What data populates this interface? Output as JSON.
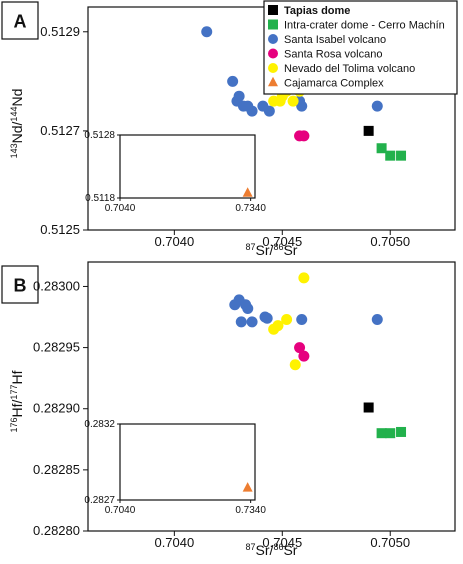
{
  "chart_data": [
    {
      "type": "scatter",
      "panel": "A",
      "xlabel": {
        "sup": "87",
        "base": "Sr/",
        "sup2": "86",
        "base2": "Sr"
      },
      "ylabel": {
        "sup": "143",
        "base": "Nd/",
        "sup2": "144",
        "base2": "Nd"
      },
      "xlim": [
        0.7036,
        0.7053
      ],
      "ylim": [
        0.5125,
        0.51295
      ],
      "xticks": [
        "0.7040",
        "0.7045",
        "0.7050"
      ],
      "xtick_values": [
        0.704,
        0.7045,
        0.705
      ],
      "yticks": [
        "0.5125",
        "0.5127",
        "0.5129"
      ],
      "ytick_values": [
        0.5125,
        0.5127,
        0.5129
      ],
      "series": [
        {
          "name": "Tapias dome",
          "color": "#000000",
          "marker": "square",
          "points": [
            [
              0.7049,
              0.5127
            ]
          ]
        },
        {
          "name": "Intra-crater dome - Cerro Machín",
          "color": "#22b14c",
          "marker": "square",
          "points": [
            [
              0.70496,
              0.512665
            ],
            [
              0.705,
              0.51265
            ],
            [
              0.70505,
              0.51265
            ]
          ]
        },
        {
          "name": "Santa Isabel volcano",
          "color": "#4472c4",
          "marker": "circle",
          "points": [
            [
              0.70415,
              0.5129
            ],
            [
              0.70427,
              0.5128
            ],
            [
              0.70429,
              0.51276
            ],
            [
              0.7043,
              0.51277
            ],
            [
              0.70432,
              0.51275
            ],
            [
              0.70434,
              0.51275
            ],
            [
              0.70436,
              0.51274
            ],
            [
              0.70441,
              0.51275
            ],
            [
              0.70444,
              0.51274
            ],
            [
              0.70458,
              0.51276
            ],
            [
              0.70459,
              0.51275
            ],
            [
              0.70494,
              0.51275
            ]
          ]
        },
        {
          "name": "Santa Rosa volcano",
          "color": "#e6007e",
          "marker": "circle",
          "points": [
            [
              0.70458,
              0.51269
            ],
            [
              0.7046,
              0.51269
            ]
          ]
        },
        {
          "name": "Nevado del Tolima volcano",
          "color": "#fff200",
          "marker": "circle",
          "points": [
            [
              0.70446,
              0.51276
            ],
            [
              0.70449,
              0.51276
            ],
            [
              0.7045,
              0.51277
            ],
            [
              0.70452,
              0.51278
            ],
            [
              0.70455,
              0.51279
            ],
            [
              0.70455,
              0.51276
            ],
            [
              0.70458,
              0.51278
            ],
            [
              0.70459,
              0.5128
            ]
          ]
        }
      ],
      "inset": {
        "xlim": [
          0.704,
          0.735
        ],
        "ylim": [
          0.5118,
          0.5128
        ],
        "xticks": [
          "0.7040",
          "0.7340"
        ],
        "xtick_values": [
          0.704,
          0.734
        ],
        "yticks": [
          "0.5118",
          "0.5128"
        ],
        "ytick_values": [
          0.5118,
          0.5128
        ],
        "series": [
          {
            "name": "Cajamarca Complex",
            "color": "#ed7d31",
            "marker": "triangle",
            "points": [
              [
                0.734,
                0.51188
              ]
            ]
          }
        ]
      }
    },
    {
      "type": "scatter",
      "panel": "B",
      "xlabel": {
        "sup": "87",
        "base": "Sr/",
        "sup2": "86",
        "base2": "Sr"
      },
      "ylabel": {
        "sup": "176",
        "base": "Hf/",
        "sup2": "177",
        "base2": "Hf"
      },
      "xlim": [
        0.7036,
        0.7053
      ],
      "ylim": [
        0.2828,
        0.28302
      ],
      "xticks": [
        "0.7040",
        "0.7045",
        "0.7050"
      ],
      "xtick_values": [
        0.704,
        0.7045,
        0.705
      ],
      "yticks": [
        "0.28280",
        "0.28285",
        "0.28290",
        "0.28295",
        "0.28300"
      ],
      "ytick_values": [
        0.2828,
        0.28285,
        0.2829,
        0.28295,
        0.283
      ],
      "series": [
        {
          "name": "Tapias dome",
          "color": "#000000",
          "marker": "square",
          "points": [
            [
              0.7049,
              0.282901
            ]
          ]
        },
        {
          "name": "Intra-crater dome - Cerro Machín",
          "color": "#22b14c",
          "marker": "square",
          "points": [
            [
              0.70496,
              0.28288
            ],
            [
              0.705,
              0.28288
            ],
            [
              0.70505,
              0.282881
            ]
          ]
        },
        {
          "name": "Santa Isabel volcano",
          "color": "#4472c4",
          "marker": "circle",
          "points": [
            [
              0.70428,
              0.282985
            ],
            [
              0.7043,
              0.282989
            ],
            [
              0.70431,
              0.282971
            ],
            [
              0.70433,
              0.282985
            ],
            [
              0.70434,
              0.282982
            ],
            [
              0.70436,
              0.282971
            ],
            [
              0.70442,
              0.282975
            ],
            [
              0.70443,
              0.282974
            ],
            [
              0.70459,
              0.282973
            ],
            [
              0.70494,
              0.282973
            ]
          ]
        },
        {
          "name": "Santa Rosa volcano",
          "color": "#e6007e",
          "marker": "circle",
          "points": [
            [
              0.70458,
              0.28295
            ],
            [
              0.7046,
              0.282943
            ]
          ]
        },
        {
          "name": "Nevado del Tolima volcano",
          "color": "#fff200",
          "marker": "circle",
          "points": [
            [
              0.70446,
              0.282965
            ],
            [
              0.70448,
              0.282968
            ],
            [
              0.70452,
              0.282973
            ],
            [
              0.70456,
              0.282936
            ],
            [
              0.7046,
              0.283007
            ]
          ]
        }
      ],
      "inset": {
        "xlim": [
          0.704,
          0.735
        ],
        "ylim": [
          0.2827,
          0.2832
        ],
        "xticks": [
          "0.7040",
          "0.7340"
        ],
        "xtick_values": [
          0.704,
          0.734
        ],
        "yticks": [
          "0.2827",
          "0.2832"
        ],
        "ytick_values": [
          0.2827,
          0.2832
        ],
        "series": [
          {
            "name": "Cajamarca Complex",
            "color": "#ed7d31",
            "marker": "triangle",
            "points": [
              [
                0.734,
                0.28278
              ]
            ]
          }
        ]
      }
    }
  ],
  "legend": {
    "placement": "top-right",
    "entries": [
      {
        "label": "Tapias dome",
        "color": "#000000",
        "marker": "square",
        "bold": true
      },
      {
        "label": "Intra-crater dome - Cerro Machín",
        "color": "#22b14c",
        "marker": "square",
        "bold": false
      },
      {
        "label": "Santa Isabel volcano",
        "color": "#4472c4",
        "marker": "circle",
        "bold": false
      },
      {
        "label": "Santa Rosa volcano",
        "color": "#e6007e",
        "marker": "circle",
        "bold": false
      },
      {
        "label": "Nevado del Tolima volcano",
        "color": "#fff200",
        "marker": "circle",
        "bold": false
      },
      {
        "label": "Cajamarca Complex",
        "color": "#ed7d31",
        "marker": "triangle",
        "bold": false
      }
    ]
  }
}
